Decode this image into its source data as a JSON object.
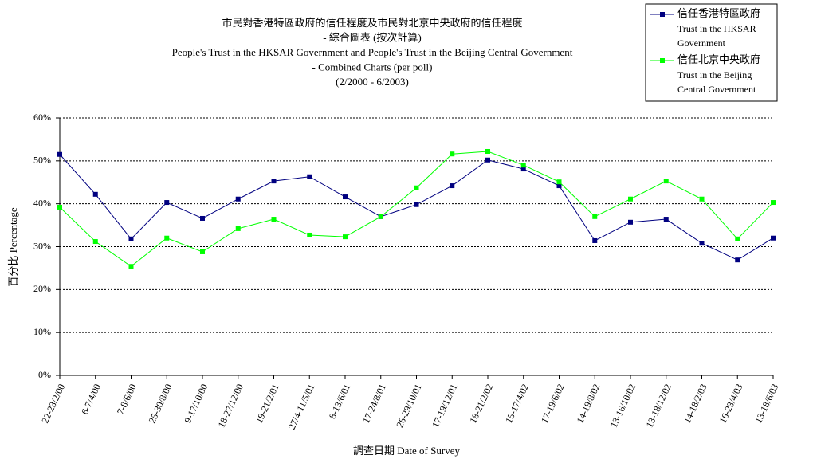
{
  "chart_data": {
    "type": "line",
    "title": [
      "市民對香港特區政府的信任程度及市民對北京中央政府的信任程度",
      "- 綜合圖表 (按次計算)",
      "People's Trust in the HKSAR Government and People's Trust in the Beijing Central Government",
      "- Combined Charts (per poll)",
      "(2/2000 - 6/2003)"
    ],
    "x_label": "調查日期 Date of Survey",
    "y_label": "百分比 Percentage",
    "categories": [
      "22-23/2/00",
      "6-7/4/00",
      "7-8/6/00",
      "25-30/8/00",
      "9-17/10/00",
      "18-27/12/00",
      "19-21/2/01",
      "27/4-11/5/01",
      "8-13/6/01",
      "17-24/8/01",
      "26-29/10/01",
      "17-19/12/01",
      "18-21/2/02",
      "15-17/4/02",
      "17-19/6/02",
      "14-19/8/02",
      "13-16/10/02",
      "13-18/12/02",
      "14-18/2/03",
      "16-23/4/03",
      "13-18/6/03"
    ],
    "series": [
      {
        "name": "信任香港特區政府",
        "name_en_lines": [
          "Trust in the HKSAR",
          "Government"
        ],
        "color": "#000080",
        "values": [
          51.5,
          42.2,
          31.8,
          40.3,
          36.6,
          41.1,
          45.3,
          46.3,
          41.6,
          37.0,
          39.8,
          44.2,
          50.2,
          48.1,
          44.2,
          31.4,
          35.7,
          36.4,
          30.8,
          26.9,
          32.0
        ]
      },
      {
        "name": "信任北京中央政府",
        "name_en_lines": [
          "Trust in the Beijing",
          "Central Government"
        ],
        "color": "#00ff00",
        "values": [
          39.2,
          31.2,
          25.4,
          32.0,
          28.8,
          34.2,
          36.4,
          32.7,
          32.3,
          37.0,
          43.7,
          51.6,
          52.2,
          49.0,
          45.1,
          37.0,
          41.1,
          45.3,
          41.1,
          31.8,
          40.3
        ]
      }
    ],
    "ylim": [
      0,
      60
    ],
    "yticks": [
      {
        "value": 0,
        "label": "0%"
      },
      {
        "value": 10,
        "label": "10%"
      },
      {
        "value": 20,
        "label": "20%"
      },
      {
        "value": 30,
        "label": "30%"
      },
      {
        "value": 40,
        "label": "40%"
      },
      {
        "value": 50,
        "label": "50%"
      },
      {
        "value": 60,
        "label": "60%"
      }
    ],
    "grid": true,
    "legend": "top-right"
  }
}
